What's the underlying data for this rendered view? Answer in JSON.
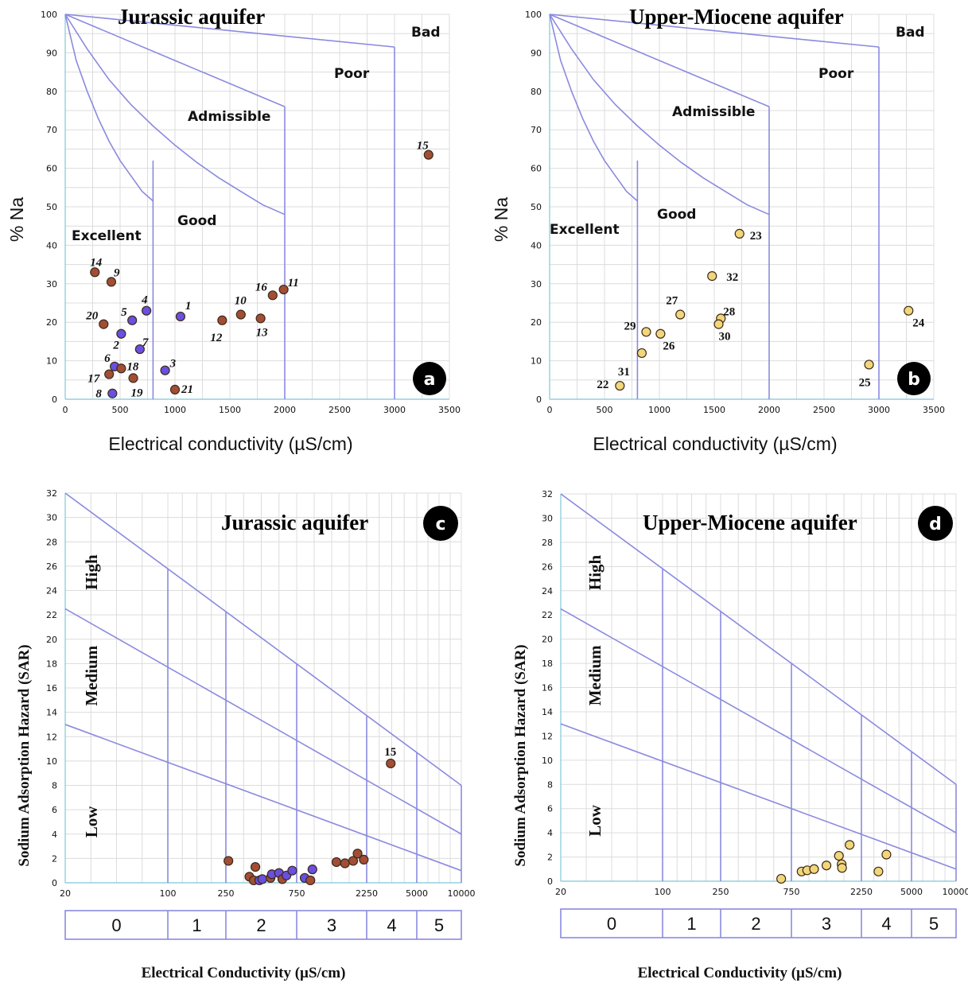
{
  "colors": {
    "boundary": "#8a8adf",
    "grid": "#dcdcdc",
    "jurassic_blue": "#6a4fe0",
    "jurassic_brown": "#a24e35",
    "miocene_yellow": "#f2d67a",
    "badge": "#000000"
  },
  "chart_data": [
    {
      "id": "a",
      "type": "scatter",
      "diagram": "wilcox",
      "title": "Jurassic aquifer",
      "badge": "a",
      "xlabel": "Electrical conductivity (µS/cm)",
      "ylabel": "% Na",
      "xlim": [
        0,
        3500
      ],
      "ylim": [
        0,
        100
      ],
      "xticks": [
        "0",
        "500",
        "1000",
        "1500",
        "2000",
        "2500",
        "3000",
        "3500"
      ],
      "yticks": [
        "0",
        "10",
        "20",
        "30",
        "40",
        "50",
        "60",
        "70",
        "80",
        "90",
        "100"
      ],
      "zones": [
        "Excellent",
        "Good",
        "Admissible",
        "Poor",
        "Bad"
      ],
      "points": [
        {
          "label": "1",
          "x": 1050,
          "y": 21.5,
          "group": "blue"
        },
        {
          "label": "2",
          "x": 510,
          "y": 17,
          "group": "blue"
        },
        {
          "label": "3",
          "x": 910,
          "y": 7.5,
          "group": "blue"
        },
        {
          "label": "4",
          "x": 740,
          "y": 23,
          "group": "blue"
        },
        {
          "label": "5",
          "x": 610,
          "y": 20.5,
          "group": "blue"
        },
        {
          "label": "6",
          "x": 450,
          "y": 8.5,
          "group": "blue"
        },
        {
          "label": "7",
          "x": 680,
          "y": 13,
          "group": "blue"
        },
        {
          "label": "8",
          "x": 430,
          "y": 1.5,
          "group": "blue"
        },
        {
          "label": "9",
          "x": 420,
          "y": 30.5,
          "group": "brown"
        },
        {
          "label": "10",
          "x": 1600,
          "y": 22,
          "group": "brown"
        },
        {
          "label": "11",
          "x": 1990,
          "y": 28.5,
          "group": "brown"
        },
        {
          "label": "12",
          "x": 1430,
          "y": 20.5,
          "group": "brown"
        },
        {
          "label": "13",
          "x": 1780,
          "y": 21,
          "group": "brown"
        },
        {
          "label": "14",
          "x": 270,
          "y": 33,
          "group": "brown"
        },
        {
          "label": "15",
          "x": 3310,
          "y": 63.5,
          "group": "brown"
        },
        {
          "label": "16",
          "x": 1890,
          "y": 27,
          "group": "brown"
        },
        {
          "label": "17",
          "x": 400,
          "y": 6.5,
          "group": "brown"
        },
        {
          "label": "18",
          "x": 510,
          "y": 8,
          "group": "brown"
        },
        {
          "label": "19",
          "x": 620,
          "y": 5.5,
          "group": "brown"
        },
        {
          "label": "20",
          "x": 350,
          "y": 19.5,
          "group": "brown"
        },
        {
          "label": "21",
          "x": 1000,
          "y": 2.5,
          "group": "brown"
        }
      ]
    },
    {
      "id": "b",
      "type": "scatter",
      "diagram": "wilcox",
      "title": "Upper-Miocene aquifer",
      "badge": "b",
      "xlabel": "Electrical conductivity (µS/cm)",
      "ylabel": "% Na",
      "xlim": [
        0,
        3500
      ],
      "ylim": [
        0,
        100
      ],
      "xticks": [
        "0",
        "500",
        "1000",
        "1500",
        "2000",
        "2500",
        "3000",
        "3500"
      ],
      "yticks": [
        "0",
        "10",
        "20",
        "30",
        "40",
        "50",
        "60",
        "70",
        "80",
        "90",
        "100"
      ],
      "zones": [
        "Excellent",
        "Good",
        "Admissible",
        "Poor",
        "Bad"
      ],
      "points": [
        {
          "label": "22",
          "x": 640,
          "y": 3.5,
          "group": "yellow"
        },
        {
          "label": "23",
          "x": 1730,
          "y": 43,
          "group": "yellow"
        },
        {
          "label": "24",
          "x": 3270,
          "y": 23,
          "group": "yellow"
        },
        {
          "label": "25",
          "x": 2910,
          "y": 9,
          "group": "yellow"
        },
        {
          "label": "26",
          "x": 1010,
          "y": 17,
          "group": "yellow"
        },
        {
          "label": "27",
          "x": 1190,
          "y": 22,
          "group": "yellow"
        },
        {
          "label": "28",
          "x": 1560,
          "y": 21,
          "group": "yellow"
        },
        {
          "label": "29",
          "x": 880,
          "y": 17.5,
          "group": "yellow"
        },
        {
          "label": "30",
          "x": 1540,
          "y": 19.5,
          "group": "yellow"
        },
        {
          "label": "31",
          "x": 840,
          "y": 12,
          "group": "yellow"
        },
        {
          "label": "32",
          "x": 1480,
          "y": 32,
          "group": "yellow"
        }
      ]
    },
    {
      "id": "c",
      "type": "scatter",
      "diagram": "riverside",
      "title": "Jurassic aquifer",
      "badge": "c",
      "xlabel": "Electrical Conductivity (µS/cm)",
      "ylabel": "Sodium Adsorption Hazard (SAR)",
      "xticks": [
        "20",
        "100",
        "250",
        "750",
        "2250",
        "5000",
        "10000"
      ],
      "xtick_values": [
        20,
        100,
        250,
        750,
        2250,
        5000,
        10000
      ],
      "ylim": [
        0,
        32
      ],
      "yticks": [
        "0",
        "2",
        "4",
        "6",
        "8",
        "10",
        "12",
        "14",
        "16",
        "18",
        "20",
        "22",
        "24",
        "26",
        "28",
        "30",
        "32"
      ],
      "zones": [
        "Low",
        "Medium",
        "High"
      ],
      "classes": [
        "0",
        "1",
        "2",
        "3",
        "4",
        "5"
      ],
      "points": [
        {
          "label": "15",
          "x": 3300,
          "y": 9.8,
          "group": "brown"
        },
        {
          "x": 260,
          "y": 1.8,
          "group": "brown"
        },
        {
          "x": 360,
          "y": 0.5,
          "group": "brown"
        },
        {
          "x": 395,
          "y": 1.3,
          "group": "brown"
        },
        {
          "x": 385,
          "y": 0.2,
          "group": "brown"
        },
        {
          "x": 420,
          "y": 0.2,
          "group": "blue"
        },
        {
          "x": 440,
          "y": 0.3,
          "group": "blue"
        },
        {
          "x": 500,
          "y": 0.4,
          "group": "brown"
        },
        {
          "x": 510,
          "y": 0.7,
          "group": "blue"
        },
        {
          "x": 570,
          "y": 0.8,
          "group": "blue"
        },
        {
          "x": 600,
          "y": 0.3,
          "group": "brown"
        },
        {
          "x": 640,
          "y": 0.6,
          "group": "blue"
        },
        {
          "x": 700,
          "y": 1.0,
          "group": "blue"
        },
        {
          "x": 850,
          "y": 0.4,
          "group": "blue"
        },
        {
          "x": 930,
          "y": 0.2,
          "group": "brown"
        },
        {
          "x": 960,
          "y": 1.1,
          "group": "blue"
        },
        {
          "x": 1400,
          "y": 1.7,
          "group": "brown"
        },
        {
          "x": 1600,
          "y": 1.6,
          "group": "brown"
        },
        {
          "x": 1820,
          "y": 1.8,
          "group": "brown"
        },
        {
          "x": 1950,
          "y": 2.4,
          "group": "brown"
        },
        {
          "x": 2150,
          "y": 1.9,
          "group": "brown"
        }
      ]
    },
    {
      "id": "d",
      "type": "scatter",
      "diagram": "riverside",
      "title": "Upper-Miocene aquifer",
      "badge": "d",
      "xlabel": "Electrical Conductivity (µS/cm)",
      "ylabel": "Sodium Adsorption Hazard (SAR)",
      "xticks": [
        "20",
        "100",
        "250",
        "750",
        "2250",
        "5000",
        "10000"
      ],
      "xtick_values": [
        20,
        100,
        250,
        750,
        2250,
        5000,
        10000
      ],
      "ylim": [
        0,
        32
      ],
      "yticks": [
        "0",
        "2",
        "4",
        "6",
        "8",
        "10",
        "12",
        "14",
        "16",
        "18",
        "20",
        "22",
        "24",
        "26",
        "28",
        "30",
        "32"
      ],
      "zones": [
        "Low",
        "Medium",
        "High"
      ],
      "classes": [
        "0",
        "1",
        "2",
        "3",
        "4",
        "5"
      ],
      "points": [
        {
          "x": 640,
          "y": 0.2,
          "group": "yellow"
        },
        {
          "x": 880,
          "y": 0.8,
          "group": "yellow"
        },
        {
          "x": 960,
          "y": 0.9,
          "group": "yellow"
        },
        {
          "x": 1070,
          "y": 1.0,
          "group": "yellow"
        },
        {
          "x": 1300,
          "y": 1.3,
          "group": "yellow"
        },
        {
          "x": 1580,
          "y": 2.1,
          "group": "yellow"
        },
        {
          "x": 1650,
          "y": 1.4,
          "group": "yellow"
        },
        {
          "x": 1660,
          "y": 1.1,
          "group": "yellow"
        },
        {
          "x": 1870,
          "y": 3.0,
          "group": "yellow"
        },
        {
          "x": 2950,
          "y": 0.8,
          "group": "yellow"
        },
        {
          "x": 3350,
          "y": 2.2,
          "group": "yellow"
        }
      ]
    }
  ]
}
